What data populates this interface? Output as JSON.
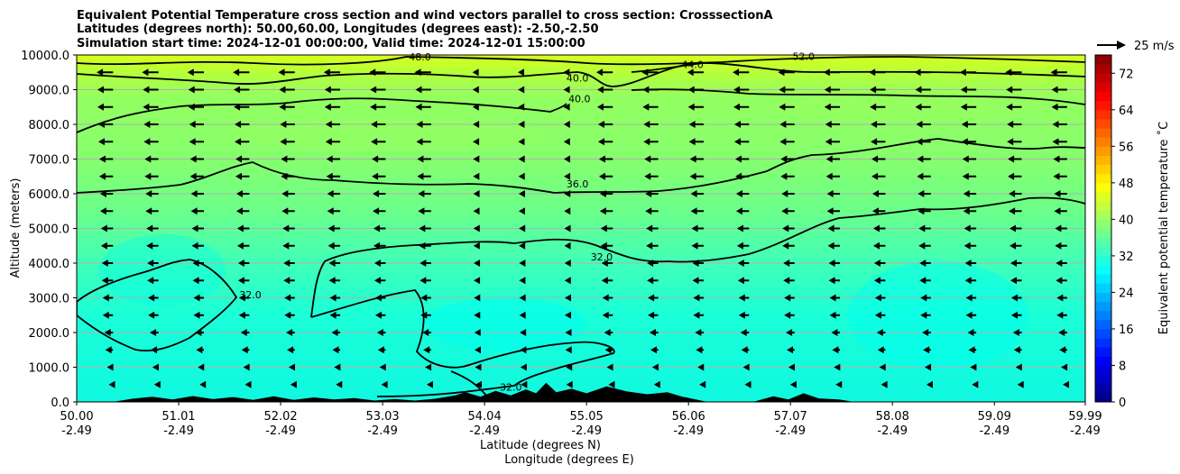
{
  "chart_data": {
    "type": "contour cross section with wind vectors",
    "title_lines": [
      "Equivalent Potential Temperature cross section and wind vectors parallel to cross section: CrosssectionA",
      "Latitudes (degrees north): 50.00,60.00, Longitudes (degrees east): -2.50,-2.50",
      "Simulation start time: 2024-12-01 00:00:00, Valid time: 2024-12-01 15:00:00"
    ],
    "ylabel": "Altitude (meters)",
    "xlabel_lat": "Latitude (degrees N)",
    "xlabel_lon": "Longitude (degrees E)",
    "xlim": [
      50.0,
      59.99
    ],
    "ylim": [
      0,
      10000
    ],
    "x_tick_lat": [
      "50.00",
      "51.01",
      "52.02",
      "53.03",
      "54.04",
      "55.05",
      "56.06",
      "57.07",
      "58.08",
      "59.09",
      "59.99"
    ],
    "x_tick_lat_values": [
      50.0,
      51.01,
      52.02,
      53.03,
      54.04,
      55.05,
      56.06,
      57.07,
      58.08,
      59.09,
      59.99
    ],
    "x_tick_lon": [
      "-2.49",
      "-2.49",
      "-2.49",
      "-2.49",
      "-2.49",
      "-2.49",
      "-2.49",
      "-2.49",
      "-2.49",
      "-2.49",
      "-2.49"
    ],
    "y_tick_labels": [
      "0.0",
      "1000.0",
      "2000.0",
      "3000.0",
      "4000.0",
      "5000.0",
      "6000.0",
      "7000.0",
      "8000.0",
      "9000.0",
      "10000.0"
    ],
    "y_tick_values": [
      0,
      1000,
      2000,
      3000,
      4000,
      5000,
      6000,
      7000,
      8000,
      9000,
      10000
    ],
    "grid": "horizontal",
    "colorbar": {
      "label": "Equivalent potential temperature $^\\circ$C",
      "label_text": "Equivalent potential temperature ˚C",
      "min": 0,
      "max": 76,
      "tick_labels": [
        "0",
        "8",
        "16",
        "24",
        "32",
        "40",
        "48",
        "56",
        "64",
        "72"
      ],
      "tick_values": [
        0,
        8,
        16,
        24,
        32,
        40,
        48,
        56,
        64,
        72
      ],
      "cmap": "jet"
    },
    "contour_levels_labeled": [
      "32.0",
      "36.0",
      "40.0",
      "44.0",
      "48.0",
      "52.0"
    ],
    "contour_labels": [
      {
        "text": "48.0",
        "x": 53.4,
        "y": 9850
      },
      {
        "text": "52.0",
        "x": 57.2,
        "y": 9860
      },
      {
        "text": "44.0",
        "x": 56.1,
        "y": 9620
      },
      {
        "text": "40.0",
        "x": 54.96,
        "y": 9230
      },
      {
        "text": "40.0",
        "x": 54.98,
        "y": 8630
      },
      {
        "text": "36.0",
        "x": 54.96,
        "y": 6180
      },
      {
        "text": "32.0",
        "x": 55.2,
        "y": 4080
      },
      {
        "text": "32.0",
        "x": 51.72,
        "y": 2990
      },
      {
        "text": "32.0",
        "x": 54.3,
        "y": 320
      }
    ],
    "wind_key": {
      "label": "25 m/s",
      "value_ms": 25
    },
    "wind_vectors": {
      "direction": "negative x (toward lower latitude)",
      "x_values": [
        50.36,
        50.81,
        51.26,
        51.71,
        52.16,
        52.61,
        53.06,
        53.51,
        53.96,
        54.41,
        54.86,
        55.31,
        55.76,
        56.21,
        56.66,
        57.11,
        57.56,
        58.01,
        58.46,
        58.91,
        59.36,
        59.81
      ],
      "levels_m": [
        500,
        1000,
        1500,
        2000,
        2500,
        3000,
        3500,
        4000,
        4500,
        5000,
        5500,
        6000,
        6500,
        7000,
        7500,
        8000,
        8500,
        9000,
        9500
      ],
      "speed_ms_by_level": [
        5,
        7,
        9,
        10,
        12,
        12,
        13,
        13,
        14,
        14,
        15,
        15,
        16,
        16,
        17,
        17,
        18,
        18,
        19
      ],
      "slow_columns_x": [
        53.96,
        54.41,
        54.86
      ]
    },
    "terrain_heights_m": [
      [
        50.0,
        0
      ],
      [
        50.35,
        0
      ],
      [
        50.55,
        90
      ],
      [
        50.75,
        150
      ],
      [
        50.95,
        70
      ],
      [
        51.15,
        170
      ],
      [
        51.35,
        80
      ],
      [
        51.55,
        140
      ],
      [
        51.75,
        60
      ],
      [
        51.95,
        160
      ],
      [
        52.15,
        60
      ],
      [
        52.35,
        130
      ],
      [
        52.55,
        70
      ],
      [
        52.75,
        110
      ],
      [
        52.95,
        40
      ],
      [
        53.15,
        80
      ],
      [
        53.35,
        40
      ],
      [
        53.55,
        90
      ],
      [
        53.75,
        190
      ],
      [
        53.85,
        280
      ],
      [
        54.0,
        150
      ],
      [
        54.15,
        320
      ],
      [
        54.3,
        190
      ],
      [
        54.45,
        360
      ],
      [
        54.55,
        250
      ],
      [
        54.65,
        550
      ],
      [
        54.75,
        280
      ],
      [
        54.9,
        380
      ],
      [
        55.05,
        250
      ],
      [
        55.25,
        450
      ],
      [
        55.45,
        300
      ],
      [
        55.65,
        220
      ],
      [
        55.85,
        280
      ],
      [
        56.0,
        150
      ],
      [
        56.25,
        0
      ],
      [
        56.7,
        0
      ],
      [
        56.9,
        160
      ],
      [
        57.05,
        70
      ],
      [
        57.2,
        250
      ],
      [
        57.35,
        100
      ],
      [
        57.55,
        70
      ],
      [
        57.7,
        0
      ],
      [
        59.99,
        0
      ]
    ],
    "fields": {
      "background_upper_value": 42,
      "background_mid_value": 36,
      "background_low_value": 31,
      "top_band_value": 48
    }
  }
}
